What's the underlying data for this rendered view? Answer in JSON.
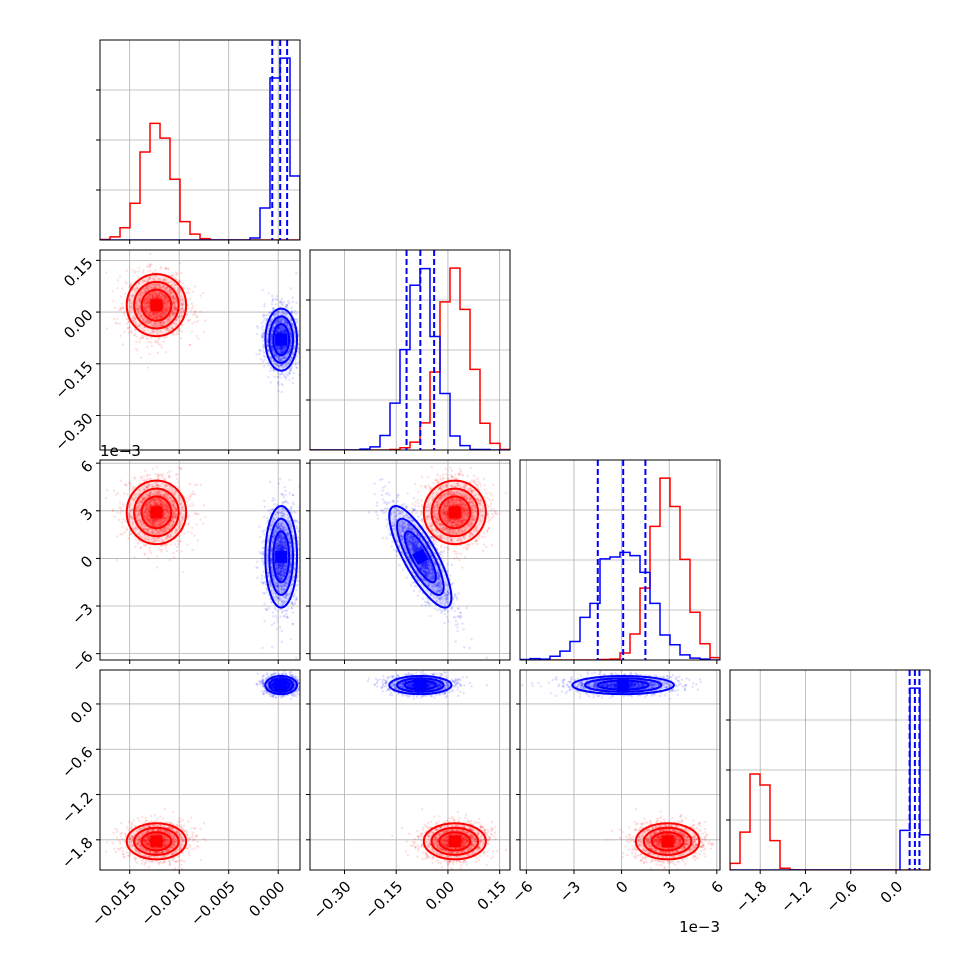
{
  "chart_data": {
    "type": "scatter",
    "layout": "corner",
    "colors": {
      "red": "#ff0000",
      "blue": "#0000ff",
      "grid": "#b0b0b0"
    },
    "variables": [
      {
        "index": 0,
        "range": [
          -0.018,
          0.0022
        ],
        "ticks": [
          -0.015,
          -0.01,
          -0.005,
          0.0
        ],
        "tick_labels": [
          "−0.015",
          "−0.010",
          "−0.005",
          "0.000"
        ],
        "offset_text": ""
      },
      {
        "index": 1,
        "range": [
          -0.4,
          0.18
        ],
        "ticks": [
          -0.3,
          -0.15,
          0.0,
          0.15
        ],
        "tick_labels": [
          "−0.30",
          "−0.15",
          "0.00",
          "0.15"
        ],
        "offset_text": ""
      },
      {
        "index": 2,
        "range": [
          -6.4,
          6.2
        ],
        "ticks": [
          -6,
          -3,
          0,
          3,
          6
        ],
        "tick_labels": [
          "−6",
          "−3",
          "0",
          "3",
          "6"
        ],
        "offset_text": "1e−3"
      },
      {
        "index": 3,
        "range": [
          -2.2,
          0.45
        ],
        "ticks": [
          -1.8,
          -1.2,
          -0.6,
          0.0
        ],
        "tick_labels": [
          "−1.8",
          "−1.2",
          "−0.6",
          "0.0"
        ],
        "offset_text": ""
      }
    ],
    "series": [
      {
        "color": "red",
        "means": [
          -0.0123,
          0.02,
          2.9,
          -1.82
        ],
        "sds": [
          0.0015,
          0.045,
          1.0,
          0.12
        ],
        "hist_peak_bins": [
          -0.0125,
          0.03,
          3.0,
          -1.8
        ]
      },
      {
        "color": "blue",
        "means": [
          0.0003,
          -0.08,
          0.1,
          0.25
        ],
        "sds": [
          0.0008,
          0.045,
          1.6,
          0.06
        ],
        "quantiles": [
          [
            -0.0006,
            0.0002,
            0.0009
          ],
          [
            -0.12,
            -0.08,
            -0.04
          ],
          [
            -1.5,
            0.1,
            1.5
          ],
          [
            0.18,
            0.25,
            0.31
          ]
        ]
      }
    ],
    "correlations": {
      "blue_1_2": -0.8
    }
  }
}
